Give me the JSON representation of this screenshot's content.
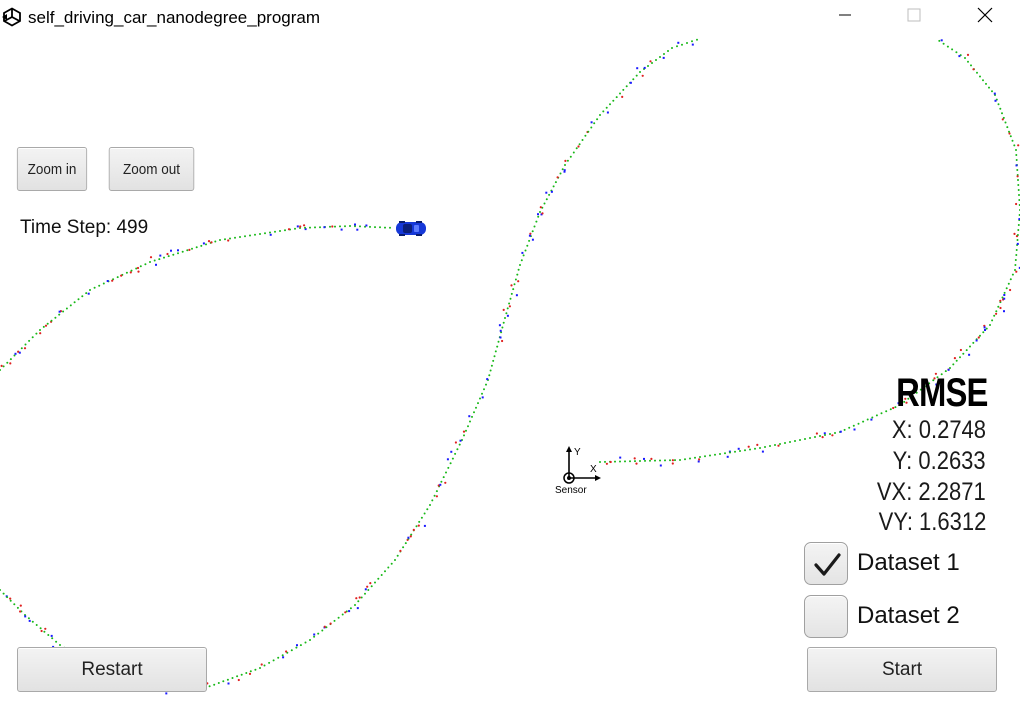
{
  "window": {
    "title": "self_driving_car_nanodegree_program",
    "app_icon": "unity-logo-icon",
    "controls": {
      "minimize_icon": "minimize-icon",
      "maximize_icon": "maximize-icon",
      "close_icon": "close-icon"
    }
  },
  "toolbar": {
    "zoom_in_label": "Zoom in",
    "zoom_out_label": "Zoom out"
  },
  "simulation": {
    "time_step_text": "Time Step: 499",
    "sensor_label": "Sensor",
    "axis_x_label": "X",
    "axis_y_label": "Y",
    "car_icon": "car-icon",
    "colors": {
      "ground_truth": "#17b817",
      "lidar": "#e02020",
      "radar": "#1a1aff",
      "car": "#1638d8"
    }
  },
  "rmse": {
    "title": "RMSE",
    "x": "X: 0.2748",
    "y": "Y: 0.2633",
    "vx": "VX: 2.2871",
    "vy": "VY: 1.6312"
  },
  "datasets": [
    {
      "label": "Dataset 1",
      "checked": true
    },
    {
      "label": "Dataset 2",
      "checked": false
    }
  ],
  "controls": {
    "restart_label": "Restart",
    "start_label": "Start"
  }
}
